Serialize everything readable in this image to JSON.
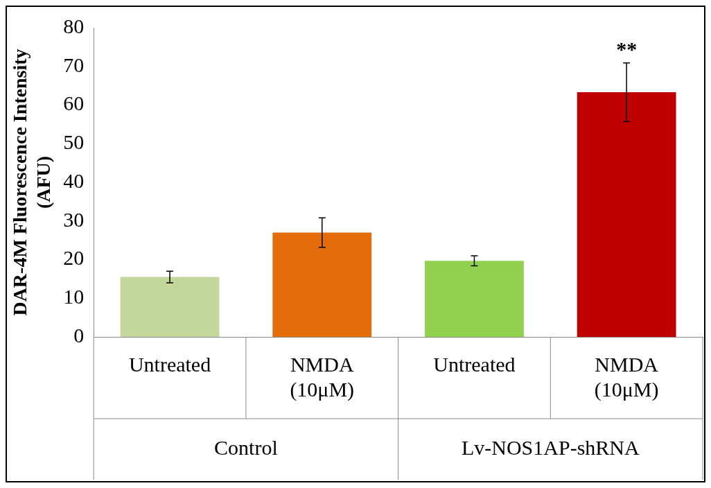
{
  "chart_data": {
    "type": "bar",
    "ylabel": "DAR-4M Fluorescence Intensity\n(AFU)",
    "categories": [
      "Untreated",
      "NMDA\n(10μM)",
      "Untreated",
      "NMDA\n(10μM)"
    ],
    "values": [
      15.5,
      27.0,
      19.7,
      63.3
    ],
    "colors": [
      "#c4d79b",
      "#e46c0a",
      "#92d050",
      "#c00000"
    ],
    "errors": [
      1.5,
      3.8,
      1.3,
      7.6
    ],
    "ylim": [
      0,
      80
    ],
    "yticks": [
      0,
      10,
      20,
      30,
      40,
      50,
      60,
      70,
      80
    ],
    "grid": false,
    "legend": false,
    "value_labels": [
      null,
      null,
      null,
      "**"
    ],
    "annotations": [
      "Control",
      "Lv-NOS1AP-shRNA"
    ]
  }
}
